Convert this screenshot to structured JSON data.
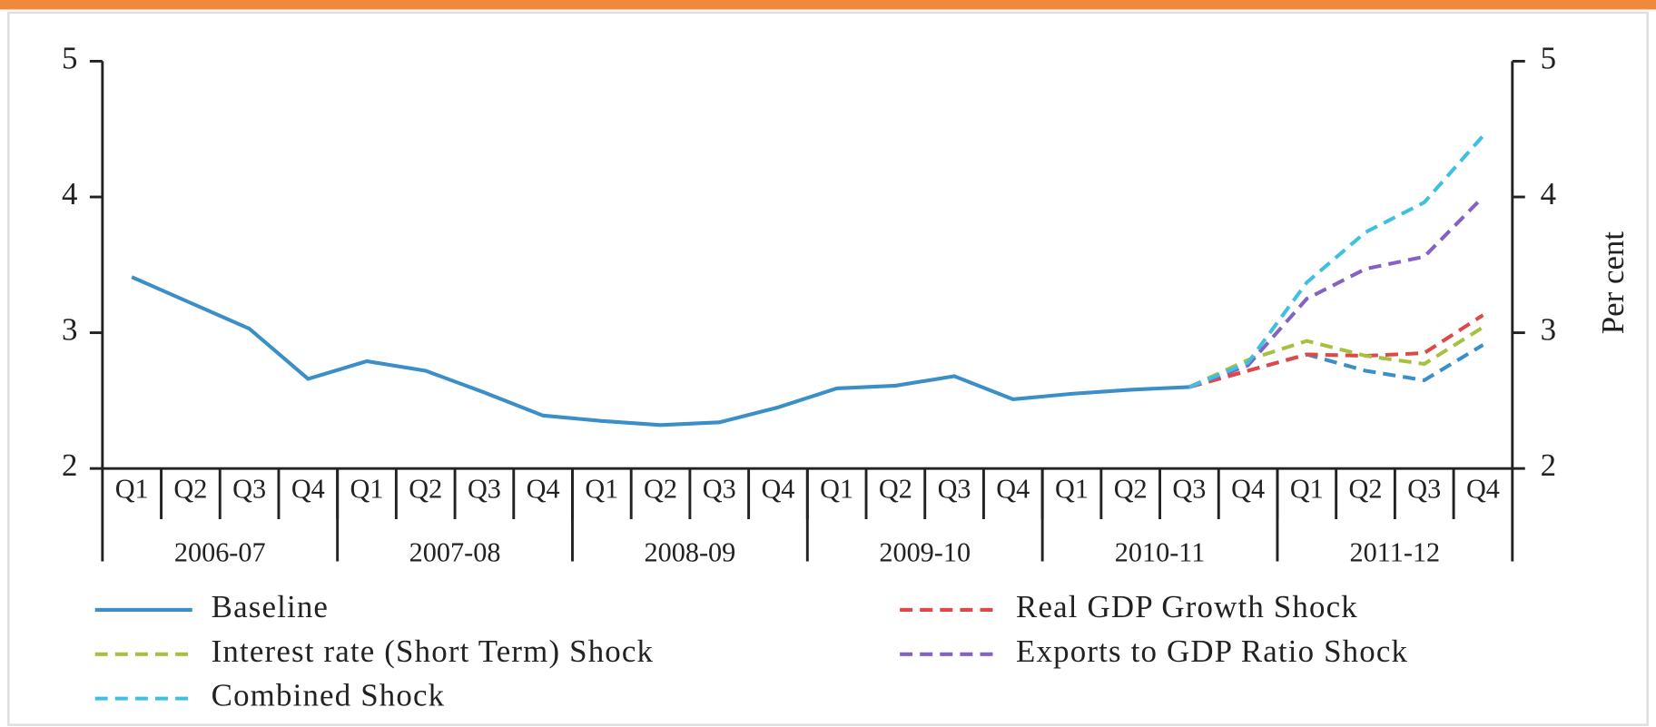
{
  "chart_data": {
    "type": "line",
    "categories": [
      "Q1",
      "Q2",
      "Q3",
      "Q4",
      "Q1",
      "Q2",
      "Q3",
      "Q4",
      "Q1",
      "Q2",
      "Q3",
      "Q4",
      "Q1",
      "Q2",
      "Q3",
      "Q4",
      "Q1",
      "Q2",
      "Q3",
      "Q4",
      "Q1",
      "Q2",
      "Q3",
      "Q4"
    ],
    "groups": [
      "2006-07",
      "2007-08",
      "2008-09",
      "2009-10",
      "2010-11",
      "2011-12"
    ],
    "y2label": "Per cent",
    "ylim": [
      2,
      5
    ],
    "yticks": [
      2,
      3,
      4,
      5
    ],
    "y2lim": [
      2,
      5
    ],
    "y2ticks": [
      2,
      3,
      4,
      5
    ],
    "series": [
      {
        "name": "Baseline",
        "color": "#3a8fc8",
        "dash": false,
        "values": [
          3.41,
          3.22,
          3.03,
          2.66,
          2.79,
          2.72,
          2.56,
          2.39,
          2.35,
          2.32,
          2.34,
          2.45,
          2.59,
          2.61,
          2.68,
          2.51,
          2.55,
          2.58,
          2.6,
          2.72,
          2.84,
          2.72,
          2.65,
          2.91
        ]
      },
      {
        "name": "Real GDP Growth Shock",
        "color": "#e04848",
        "dash": true,
        "values": [
          null,
          null,
          null,
          null,
          null,
          null,
          null,
          null,
          null,
          null,
          null,
          null,
          null,
          null,
          null,
          null,
          null,
          null,
          2.6,
          2.72,
          2.84,
          2.83,
          2.85,
          3.13
        ]
      },
      {
        "name": "Interest rate (Short Term) Shock",
        "color": "#a8c040",
        "dash": true,
        "values": [
          null,
          null,
          null,
          null,
          null,
          null,
          null,
          null,
          null,
          null,
          null,
          null,
          null,
          null,
          null,
          null,
          null,
          null,
          2.6,
          2.8,
          2.94,
          2.83,
          2.77,
          3.04
        ]
      },
      {
        "name": "Exports to GDP Ratio Shock",
        "color": "#8462c4",
        "dash": true,
        "values": [
          null,
          null,
          null,
          null,
          null,
          null,
          null,
          null,
          null,
          null,
          null,
          null,
          null,
          null,
          null,
          null,
          null,
          null,
          2.6,
          2.76,
          3.25,
          3.47,
          3.56,
          4.0
        ]
      },
      {
        "name": "Combined Shock",
        "color": "#40c0e0",
        "dash": true,
        "values": [
          null,
          null,
          null,
          null,
          null,
          null,
          null,
          null,
          null,
          null,
          null,
          null,
          null,
          null,
          null,
          null,
          null,
          null,
          2.6,
          2.78,
          3.37,
          3.74,
          3.96,
          4.45
        ]
      }
    ]
  }
}
